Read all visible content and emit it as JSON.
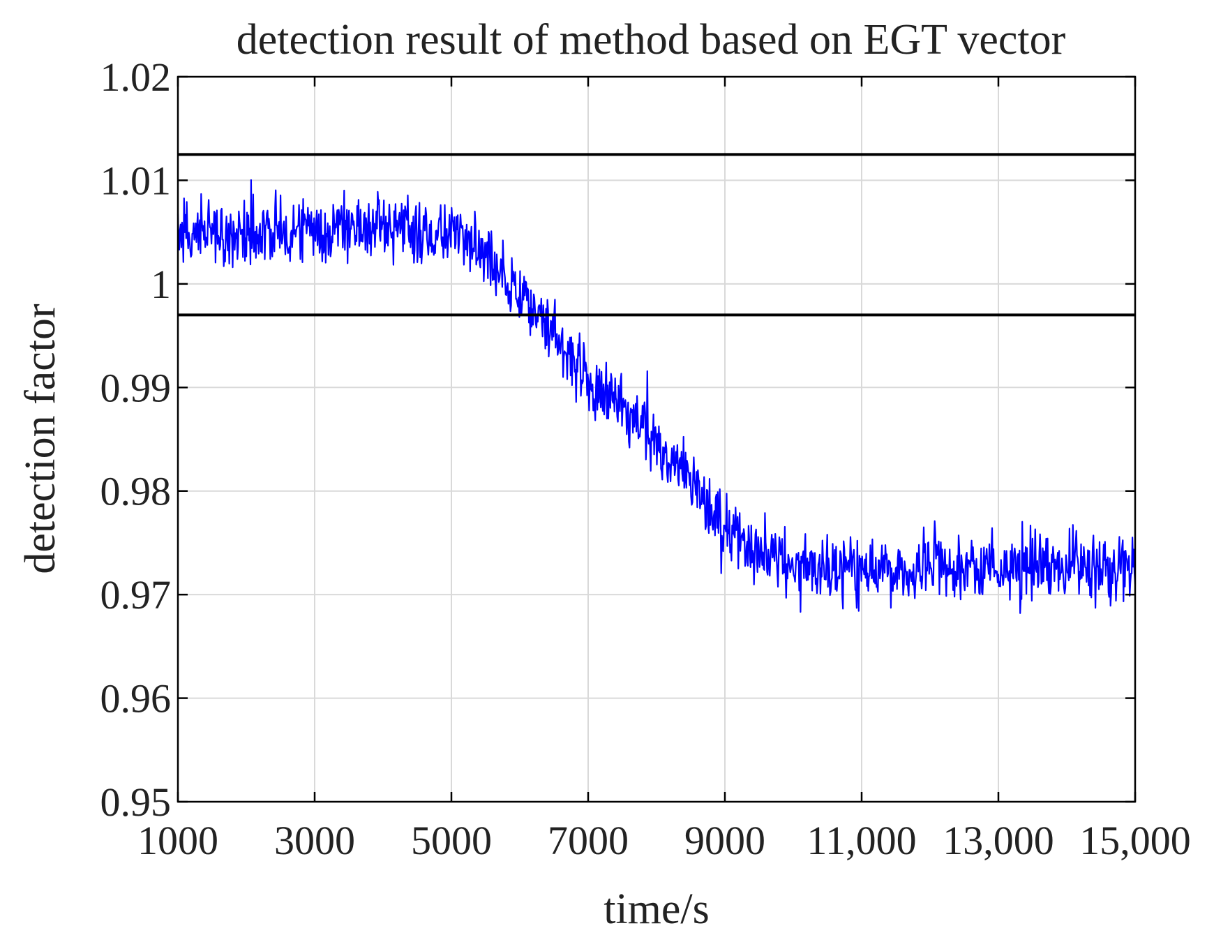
{
  "chart_data": {
    "type": "line",
    "title": "detection result of method based on EGT vector",
    "xlabel": "time/s",
    "ylabel": "detection factor",
    "xlim": [
      1000,
      15000
    ],
    "ylim": [
      0.95,
      1.02
    ],
    "grid": true,
    "x_ticks": [
      1000,
      3000,
      5000,
      7000,
      9000,
      11000,
      13000,
      15000
    ],
    "x_tick_labels": [
      "1000",
      "3000",
      "5000",
      "7000",
      "9000",
      "11,000",
      "13,000",
      "15,000"
    ],
    "y_ticks": [
      0.95,
      0.96,
      0.97,
      0.98,
      0.99,
      1.0,
      1.01,
      1.02
    ],
    "y_tick_labels": [
      "0.95",
      "0.96",
      "0.97",
      "0.98",
      "0.99",
      "1",
      "1.01",
      "1.02"
    ],
    "thresholds": [
      {
        "name": "upper threshold",
        "value": 1.0125,
        "color": "#000000"
      },
      {
        "name": "lower threshold",
        "value": 0.997,
        "color": "#000000"
      }
    ],
    "series": [
      {
        "name": "detection factor",
        "color": "#0000ff",
        "mean_profile": {
          "x": [
            1000,
            2000,
            3000,
            4000,
            5000,
            5500,
            6000,
            6500,
            7000,
            7500,
            8000,
            8500,
            9000,
            9500,
            10000,
            11000,
            12000,
            13000,
            14000,
            15000
          ],
          "y": [
            1.005,
            1.005,
            1.005,
            1.0055,
            1.005,
            1.003,
            0.999,
            0.995,
            0.991,
            0.988,
            0.985,
            0.981,
            0.977,
            0.974,
            0.9725,
            0.9725,
            0.9725,
            0.9725,
            0.9725,
            0.9725
          ]
        },
        "noise_amplitude": 0.004,
        "sample_count": 1400
      }
    ]
  },
  "colors": {
    "background": "#ffffff",
    "axis": "#000000",
    "grid": "#d9d9d9",
    "text": "#222222"
  }
}
